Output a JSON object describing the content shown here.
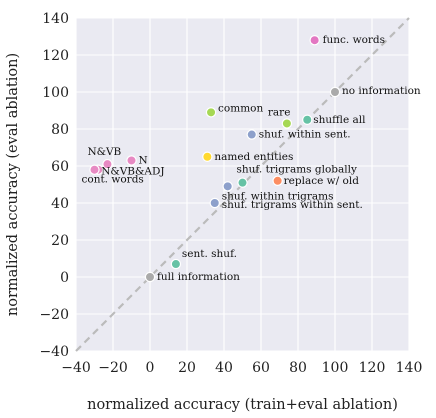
{
  "chart_data": {
    "type": "scatter",
    "title": "",
    "xlabel": "normalized accuracy (train+eval ablation)",
    "ylabel": "normalized accuracy (eval ablation)",
    "xlim": [
      -40,
      140
    ],
    "ylim": [
      -40,
      140
    ],
    "xticks": [
      "−40",
      "−20",
      "0",
      "20",
      "40",
      "60",
      "80",
      "100",
      "120",
      "140"
    ],
    "yticks": [
      "−40",
      "−20",
      "0",
      "20",
      "40",
      "60",
      "80",
      "100",
      "120",
      "140"
    ],
    "grid": true,
    "background": "#eaeaf2",
    "grid_color": "#ffffff",
    "diagonal": {
      "from": [
        -40,
        -40
      ],
      "to": [
        140,
        140
      ],
      "style": "dashed",
      "color": "#bbbbbb"
    },
    "points": [
      {
        "label": "func. words",
        "x": 89,
        "y": 128,
        "color": "#e377c2"
      },
      {
        "label": "no information",
        "x": 100,
        "y": 100,
        "color": "#aaaaaa"
      },
      {
        "label": "common",
        "x": 33,
        "y": 89,
        "color": "#a6d854"
      },
      {
        "label": "rare",
        "x": 74,
        "y": 83,
        "color": "#a6d854"
      },
      {
        "label": "shuffle all",
        "x": 85,
        "y": 85,
        "color": "#66c2a5"
      },
      {
        "label": "shuf. within sent.",
        "x": 55,
        "y": 77,
        "color": "#8da0cb"
      },
      {
        "label": "named entities",
        "x": 31,
        "y": 65,
        "color": "#ffd92f"
      },
      {
        "label": "N&VB",
        "x": -23,
        "y": 61,
        "color": "#e78ac3"
      },
      {
        "label": "N",
        "x": -10,
        "y": 63,
        "color": "#e78ac3"
      },
      {
        "label": "N&VB&ADJ",
        "x": -28,
        "y": 58,
        "color": "#e78ac3"
      },
      {
        "label": "cont. words",
        "x": -30,
        "y": 58,
        "color": "#e78ac3"
      },
      {
        "label": "shuf. trigrams globally",
        "x": 50,
        "y": 51,
        "color": "#66c2a5"
      },
      {
        "label": "replace w/ old",
        "x": 69,
        "y": 52,
        "color": "#fc8d62"
      },
      {
        "label": "shuf. within trigrams",
        "x": 42,
        "y": 49,
        "color": "#8da0cb"
      },
      {
        "label": "shuf. trigrams within sent.",
        "x": 35,
        "y": 40,
        "color": "#8da0cb"
      },
      {
        "label": "sent. shuf.",
        "x": 14,
        "y": 7,
        "color": "#66c2a5"
      },
      {
        "label": "full information",
        "x": 0,
        "y": 0,
        "color": "#aaaaaa"
      }
    ]
  }
}
